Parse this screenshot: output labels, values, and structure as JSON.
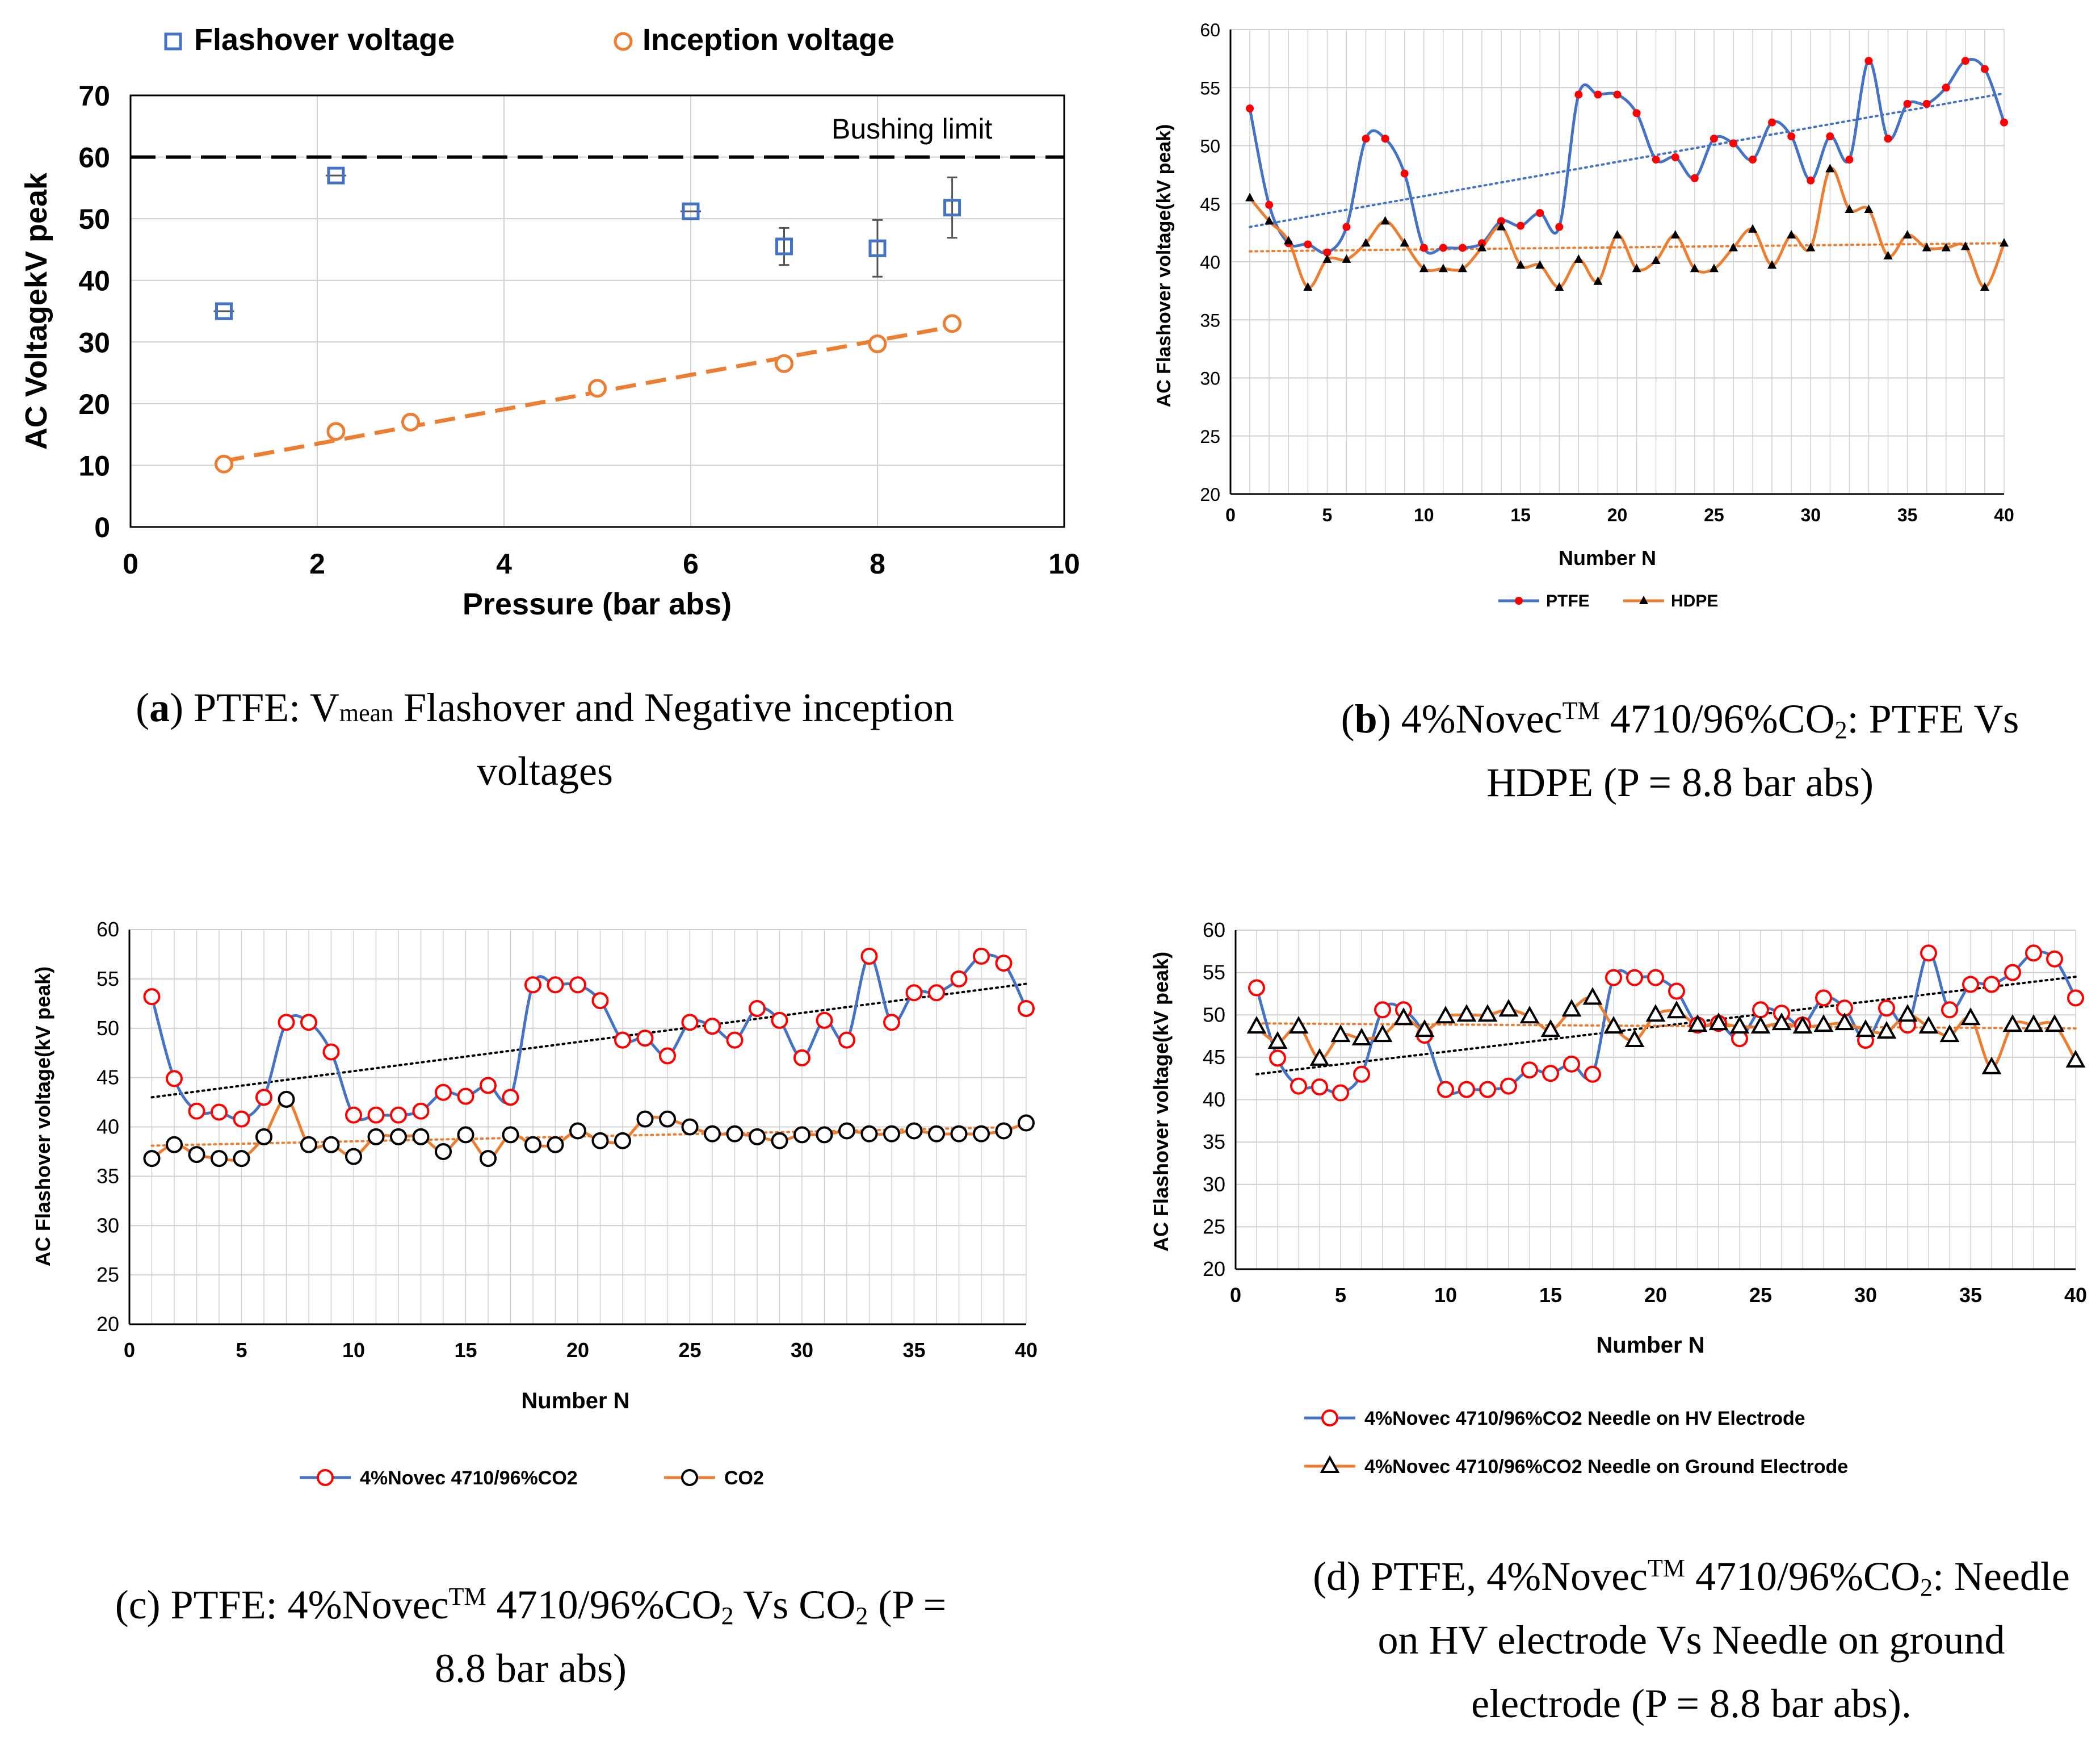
{
  "colors": {
    "blue": "#4472c4",
    "orange": "#ed7d31",
    "red": "#ff0000",
    "black": "#000000",
    "grid": "#d0d0d0"
  },
  "chart_data": [
    {
      "id": "a",
      "type": "scatter",
      "legend": [
        "Flashover voltage",
        "Inception voltage"
      ],
      "ylabel": "AC VoltagekV peak",
      "xlabel": "Pressure (bar abs)",
      "xlim": [
        0,
        10
      ],
      "ylim": [
        0,
        70
      ],
      "xticks": [
        "0",
        "2",
        "4",
        "6",
        "8",
        "10"
      ],
      "yticks": [
        "0",
        "10",
        "20",
        "30",
        "40",
        "50",
        "60",
        "70"
      ],
      "annotation": "Bushing limit",
      "bushing_limit": 60,
      "series": [
        {
          "name": "Flashover voltage",
          "marker": "square",
          "x": [
            1,
            2.2,
            6,
            7,
            8,
            8.8
          ],
          "y": [
            35,
            57,
            51.2,
            45.5,
            45.2,
            51.8
          ],
          "err": [
            0.8,
            0.8,
            0.8,
            3,
            4.6,
            4.9
          ]
        },
        {
          "name": "Inception voltage",
          "marker": "circle",
          "x": [
            1,
            2.2,
            3,
            5,
            7,
            8,
            8.8
          ],
          "y": [
            10.2,
            15.5,
            17,
            22.5,
            26.5,
            29.7,
            33
          ]
        }
      ],
      "trend": [
        [
          1,
          10.7
        ],
        [
          8.8,
          32.5
        ]
      ],
      "caption": {
        "bold": "a",
        "pre": "(",
        "post": ") PTFE: V",
        "sub": "mean",
        "rest": " Flashover and Negative inception",
        "line2": "voltages"
      }
    },
    {
      "id": "b",
      "type": "line",
      "ylabel": "AC Flashover voltage(kV peak)",
      "xlabel": "Number N",
      "xlim": [
        0,
        40
      ],
      "ylim": [
        20,
        60
      ],
      "xticks": [
        "0",
        "5",
        "10",
        "15",
        "20",
        "25",
        "30",
        "35",
        "40"
      ],
      "yticks": [
        "20",
        "25",
        "30",
        "35",
        "40",
        "45",
        "50",
        "55",
        "60"
      ],
      "series": [
        {
          "name": "PTFE",
          "y": [
            53.2,
            44.9,
            41.6,
            41.5,
            40.8,
            43,
            50.6,
            50.6,
            47.6,
            41.2,
            41.2,
            41.2,
            41.6,
            43.5,
            43.1,
            44.2,
            43,
            54.4,
            54.4,
            54.4,
            52.8,
            48.8,
            49,
            47.2,
            50.6,
            50.2,
            48.8,
            52,
            50.8,
            47,
            50.8,
            48.8,
            57.3,
            50.6,
            53.6,
            53.6,
            55,
            57.3,
            56.6,
            52
          ],
          "trend": [
            43,
            54.5
          ]
        },
        {
          "name": "HDPE",
          "y": [
            45.5,
            43.5,
            41.8,
            37.8,
            40.2,
            40.2,
            41.6,
            43.5,
            41.6,
            39.4,
            39.4,
            39.4,
            41.2,
            43,
            39.7,
            39.7,
            37.8,
            40.2,
            38.3,
            42.3,
            39.4,
            40.1,
            42.3,
            39.4,
            39.4,
            41.2,
            42.8,
            39.7,
            42.3,
            41.2,
            48,
            44.5,
            44.5,
            40.5,
            42.3,
            41.2,
            41.2,
            41.3,
            37.8,
            41.6
          ],
          "trend": [
            40.9,
            41.6
          ]
        }
      ],
      "legend": [
        "PTFE",
        "HDPE"
      ],
      "caption": {
        "bold": "b",
        "pre": "(",
        "post": ") 4%Novec",
        "sup": "TM",
        "rest": " 4710/96%CO",
        "sub": "2",
        "rest2": ": PTFE Vs",
        "line2": "HDPE (P = 8.8 bar abs)"
      }
    },
    {
      "id": "c",
      "type": "line",
      "ylabel": "AC Flashover voltage(kV peak)",
      "xlabel": "Number N",
      "xlim": [
        0,
        40
      ],
      "ylim": [
        20,
        60
      ],
      "xticks": [
        "0",
        "5",
        "10",
        "15",
        "20",
        "25",
        "30",
        "35",
        "40"
      ],
      "yticks": [
        "20",
        "25",
        "30",
        "35",
        "40",
        "45",
        "50",
        "55",
        "60"
      ],
      "series": [
        {
          "name": "4%Novec 4710/96%CO2",
          "y": [
            53.2,
            44.9,
            41.6,
            41.5,
            40.8,
            43,
            50.6,
            50.6,
            47.6,
            41.2,
            41.2,
            41.2,
            41.6,
            43.5,
            43.1,
            44.2,
            43,
            54.4,
            54.4,
            54.4,
            52.8,
            48.8,
            49,
            47.2,
            50.6,
            50.2,
            48.8,
            52,
            50.8,
            47,
            50.8,
            48.8,
            57.3,
            50.6,
            53.6,
            53.6,
            55,
            57.3,
            56.6,
            52
          ],
          "trend": [
            43,
            54.5
          ]
        },
        {
          "name": "CO2",
          "y": [
            36.8,
            38.2,
            37.2,
            36.8,
            36.8,
            39,
            42.8,
            38.2,
            38.2,
            37,
            39,
            39,
            39,
            37.5,
            39.2,
            36.8,
            39.2,
            38.2,
            38.2,
            39.6,
            38.6,
            38.6,
            40.8,
            40.8,
            40,
            39.3,
            39.3,
            39,
            38.6,
            39.2,
            39.2,
            39.6,
            39.3,
            39.3,
            39.6,
            39.3,
            39.3,
            39.3,
            39.6,
            40.4
          ],
          "trend": [
            38.1,
            40
          ]
        }
      ],
      "legend": [
        "4%Novec 4710/96%CO2",
        "CO2"
      ],
      "caption": {
        "pre": "(c) PTFE: 4%Novec",
        "sup": "TM",
        "rest": " 4710/96%CO",
        "sub": "2",
        "rest2": " Vs CO",
        "sub2": "2",
        "rest3": " (P =",
        "line2": "8.8 bar abs)"
      }
    },
    {
      "id": "d",
      "type": "line",
      "ylabel": "AC Flashover voltage(kV peak)",
      "xlabel": "Number N",
      "xlim": [
        0,
        40
      ],
      "ylim": [
        20,
        60
      ],
      "xticks": [
        "0",
        "5",
        "10",
        "15",
        "20",
        "25",
        "30",
        "35",
        "40"
      ],
      "yticks": [
        "20",
        "25",
        "30",
        "35",
        "40",
        "45",
        "50",
        "55",
        "60"
      ],
      "series": [
        {
          "name": "4%Novec 4710/96%CO2 Needle on HV Electrode",
          "y": [
            53.2,
            44.9,
            41.6,
            41.5,
            40.8,
            43,
            50.6,
            50.6,
            47.6,
            41.2,
            41.2,
            41.2,
            41.6,
            43.5,
            43.1,
            44.2,
            43,
            54.4,
            54.4,
            54.4,
            52.8,
            48.8,
            49,
            47.2,
            50.6,
            50.2,
            48.8,
            52,
            50.8,
            47,
            50.8,
            48.8,
            57.3,
            50.6,
            53.6,
            53.6,
            55,
            57.3,
            56.6,
            52
          ],
          "trend": [
            43,
            54.5
          ]
        },
        {
          "name": "4%Novec 4710/96%CO2 Needle on Ground Electrode",
          "y": [
            48.6,
            46.8,
            48.6,
            44.8,
            47.6,
            47.2,
            47.6,
            49.6,
            48.2,
            49.8,
            50,
            50,
            50.6,
            49.8,
            48.2,
            50.6,
            52,
            48.6,
            47,
            50,
            50.4,
            48.8,
            49,
            48.6,
            48.6,
            49,
            48.6,
            48.8,
            49,
            48.2,
            48,
            50,
            48.6,
            47.6,
            49.6,
            43.8,
            48.8,
            48.8,
            48.8,
            44.6
          ],
          "trend": [
            49,
            48.4
          ]
        }
      ],
      "legend": [
        "4%Novec 4710/96%CO2 Needle on HV Electrode",
        "4%Novec 4710/96%CO2 Needle on Ground Electrode"
      ],
      "caption": {
        "pre": "(d) PTFE, 4%Novec",
        "sup": "TM",
        "rest": " 4710/96%CO",
        "sub": "2",
        "rest2": ": Needle",
        "line2": "on HV electrode Vs Needle on ground",
        "line3": "electrode (P = 8.8 bar abs)."
      }
    }
  ]
}
